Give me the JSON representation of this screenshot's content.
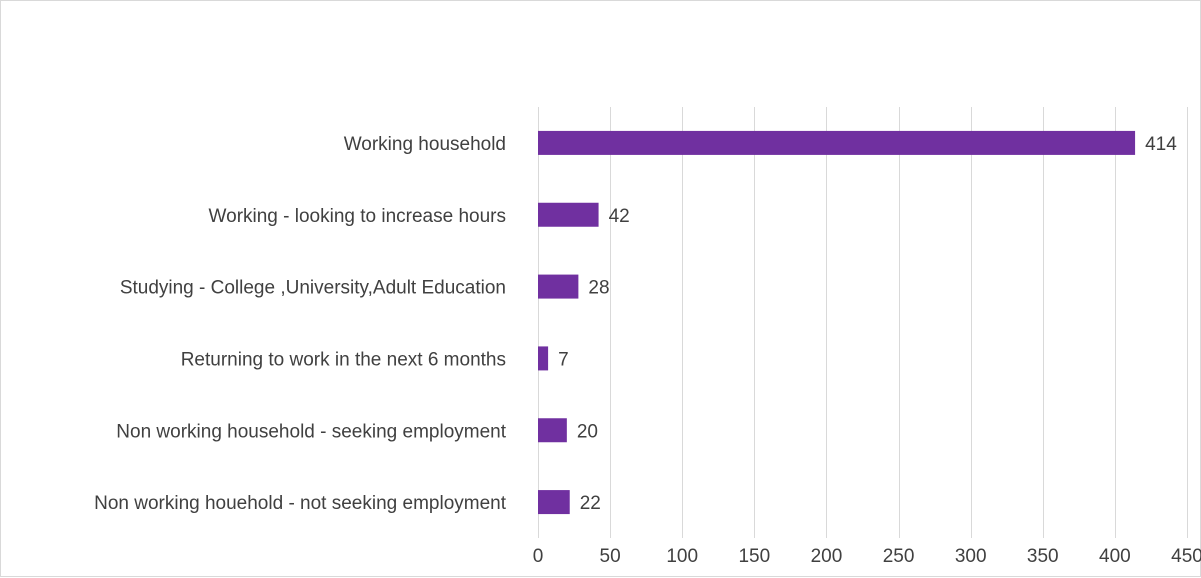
{
  "chart_data": {
    "type": "bar",
    "orientation": "horizontal",
    "title": "",
    "xlabel": "",
    "ylabel": "",
    "categories": [
      "Working household",
      "Working - looking to increase hours",
      "Studying - College ,University,Adult Education",
      "Returning to work in the next 6 months",
      "Non working household - seeking employment",
      "Non working houehold - not seeking employment"
    ],
    "values": [
      414,
      42,
      28,
      7,
      20,
      22
    ],
    "xlim": [
      0,
      450
    ],
    "ticks": [
      0,
      50,
      100,
      150,
      200,
      250,
      300,
      350,
      400,
      450
    ],
    "grid": true,
    "legend": "none",
    "bar_color": "#7030a0",
    "grid_color": "#d9d9d9",
    "text_color": "#404040"
  }
}
